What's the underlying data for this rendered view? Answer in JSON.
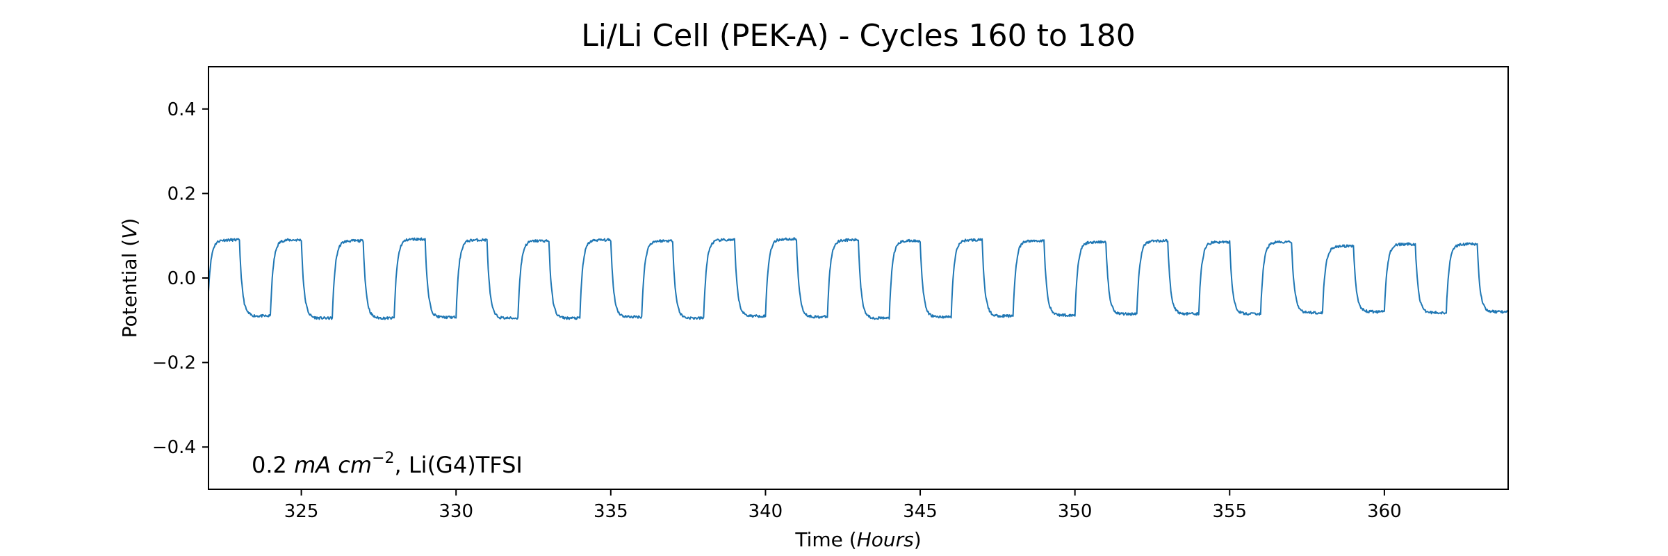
{
  "chart_data": {
    "type": "line",
    "title": "Li/Li Cell (PEK-A) - Cycles 160 to 180",
    "xlabel": {
      "prefix": "Time (",
      "italic": "Hours",
      "suffix": ")"
    },
    "ylabel": {
      "prefix": "Potential (",
      "italic": "V",
      "suffix": ")"
    },
    "xlim": [
      322,
      364
    ],
    "ylim": [
      -0.5,
      0.5
    ],
    "xticks": [
      325,
      330,
      335,
      340,
      345,
      350,
      355,
      360
    ],
    "xtick_labels": [
      "325",
      "330",
      "335",
      "340",
      "345",
      "350",
      "355",
      "360"
    ],
    "yticks": [
      -0.4,
      -0.2,
      0.0,
      0.2,
      0.4
    ],
    "ytick_labels": [
      "−0.4",
      "−0.2",
      "0.0",
      "0.2",
      "0.4"
    ],
    "grid": false,
    "legend": "none",
    "annotation": {
      "value": "0.2 ",
      "unit_italic": "mA cm",
      "exponent": "−2",
      "suffix": ", Li(G4)TFSI"
    },
    "series": [
      {
        "color": "#1f77b4",
        "cycle_period_hours": 2.0,
        "first_cycle_start": 322.0,
        "cycles": [
          {
            "start": 322.0,
            "plateau_pos": 0.09,
            "plateau_neg": -0.09
          },
          {
            "start": 324.0,
            "plateau_pos": 0.09,
            "plateau_neg": -0.095
          },
          {
            "start": 326.0,
            "plateau_pos": 0.088,
            "plateau_neg": -0.095
          },
          {
            "start": 328.0,
            "plateau_pos": 0.092,
            "plateau_neg": -0.093
          },
          {
            "start": 330.0,
            "plateau_pos": 0.09,
            "plateau_neg": -0.095
          },
          {
            "start": 332.0,
            "plateau_pos": 0.088,
            "plateau_neg": -0.095
          },
          {
            "start": 334.0,
            "plateau_pos": 0.09,
            "plateau_neg": -0.092
          },
          {
            "start": 336.0,
            "plateau_pos": 0.088,
            "plateau_neg": -0.095
          },
          {
            "start": 338.0,
            "plateau_pos": 0.09,
            "plateau_neg": -0.09
          },
          {
            "start": 340.0,
            "plateau_pos": 0.092,
            "plateau_neg": -0.092
          },
          {
            "start": 342.0,
            "plateau_pos": 0.09,
            "plateau_neg": -0.095
          },
          {
            "start": 344.0,
            "plateau_pos": 0.088,
            "plateau_neg": -0.092
          },
          {
            "start": 346.0,
            "plateau_pos": 0.09,
            "plateau_neg": -0.09
          },
          {
            "start": 348.0,
            "plateau_pos": 0.088,
            "plateau_neg": -0.088
          },
          {
            "start": 350.0,
            "plateau_pos": 0.085,
            "plateau_neg": -0.085
          },
          {
            "start": 352.0,
            "plateau_pos": 0.088,
            "plateau_neg": -0.085
          },
          {
            "start": 354.0,
            "plateau_pos": 0.085,
            "plateau_neg": -0.085
          },
          {
            "start": 356.0,
            "plateau_pos": 0.085,
            "plateau_neg": -0.082
          },
          {
            "start": 358.0,
            "plateau_pos": 0.075,
            "plateau_neg": -0.08
          },
          {
            "start": 360.0,
            "plateau_pos": 0.08,
            "plateau_neg": -0.082
          },
          {
            "start": 362.0,
            "plateau_pos": 0.08,
            "plateau_neg": -0.08
          }
        ]
      }
    ]
  }
}
